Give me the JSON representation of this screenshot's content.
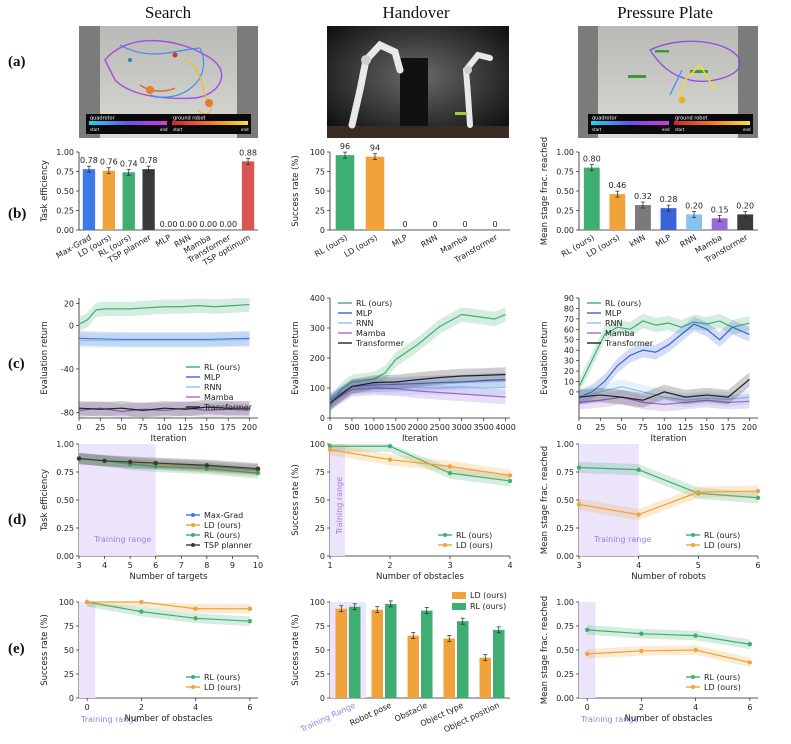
{
  "columns": [
    "Search",
    "Handover",
    "Pressure Plate"
  ],
  "rows": [
    "(a)",
    "(b)",
    "(c)",
    "(d)",
    "(e)"
  ],
  "photos": {
    "search": {
      "legend1": "quadrotor",
      "legend2": "ground robot",
      "start": "start",
      "end": "end"
    },
    "pressure": {
      "legend1": "quadrotor",
      "legend2": "ground robot",
      "start": "start",
      "end": "end"
    }
  },
  "colors": {
    "rl": "#3fae73",
    "ld": "#f0a33a",
    "mlp": "#3a63d8",
    "rnn": "#88c3ee",
    "mamba": "#9b68d8",
    "transformer": "#222222",
    "maxgrad": "#3a7be8",
    "tsp": "#3a3a3a",
    "tspopt": "#d95555",
    "knn": "#7a7a7a",
    "train": "#ebe4fb"
  },
  "chart_data": [
    {
      "id": "b1",
      "type": "bar",
      "ylabel": "Task efficiency",
      "ylim": [
        0,
        1
      ],
      "yticks": [
        "0.00",
        "0.25",
        "0.50",
        "0.75",
        "1.00"
      ],
      "categories": [
        "Max-Grad",
        "LD (ours)",
        "RL (ours)",
        "TSP planner",
        "MLP",
        "RNN",
        "Mamba",
        "Transformer",
        "TSP optimum"
      ],
      "values": [
        0.78,
        0.76,
        0.74,
        0.78,
        0,
        0,
        0,
        0,
        0.88
      ],
      "labels": [
        "0.78",
        "0.76",
        "0.74",
        "0.78",
        "0.00",
        "0.00",
        "0.00",
        "0.00",
        "0.88"
      ],
      "colors": [
        "#3a7be8",
        "#f0a33a",
        "#3fae73",
        "#3a3a3a",
        "#3a63d8",
        "#88c3ee",
        "#9b68d8",
        "#222222",
        "#d95555"
      ]
    },
    {
      "id": "b2",
      "type": "bar",
      "ylabel": "Success rate (%)",
      "ylim": [
        0,
        100
      ],
      "yticks": [
        "0",
        "25",
        "50",
        "75",
        "100"
      ],
      "categories": [
        "RL (ours)",
        "LD (ours)",
        "MLP",
        "RNN",
        "Mamba",
        "Transformer"
      ],
      "values": [
        96,
        94,
        0,
        0,
        0,
        0
      ],
      "labels": [
        "96",
        "94",
        "0",
        "0",
        "0",
        "0"
      ],
      "colors": [
        "#3fae73",
        "#f0a33a",
        "#3a63d8",
        "#88c3ee",
        "#9b68d8",
        "#222222"
      ]
    },
    {
      "id": "b3",
      "type": "bar",
      "ylabel": "Mean stage frac. reached",
      "ylim": [
        0,
        1
      ],
      "yticks": [
        "0.00",
        "0.25",
        "0.50",
        "0.75",
        "1.00"
      ],
      "categories": [
        "RL (ours)",
        "LD (ours)",
        "kNN",
        "MLP",
        "RNN",
        "Mamba",
        "Transformer"
      ],
      "values": [
        0.8,
        0.46,
        0.32,
        0.28,
        0.2,
        0.15,
        0.2
      ],
      "labels": [
        "0.80",
        "0.46",
        "0.32",
        "0.28",
        "0.20",
        "0.15",
        "0.20"
      ],
      "colors": [
        "#3fae73",
        "#f0a33a",
        "#7a7a7a",
        "#3a63d8",
        "#88c3ee",
        "#9b68d8",
        "#3a3a3a"
      ]
    },
    {
      "id": "c1",
      "type": "line",
      "xlabel": "Iteration",
      "ylabel": "Evaluation return",
      "xlim": [
        0,
        210
      ],
      "ylim": [
        -85,
        25
      ],
      "xticks": [
        0,
        25,
        50,
        75,
        100,
        125,
        150,
        175,
        200
      ],
      "yticks": [
        -80,
        -40,
        0,
        20
      ],
      "legend": [
        "RL (ours)",
        "MLP",
        "RNN",
        "Mamba",
        "Transformer"
      ],
      "series": [
        {
          "name": "RL (ours)",
          "color": "#3fae73",
          "x": [
            0,
            10,
            20,
            30,
            40,
            60,
            80,
            100,
            120,
            140,
            160,
            180,
            200
          ],
          "y": [
            1,
            5,
            14,
            15,
            15,
            15,
            16,
            17,
            17,
            18,
            17,
            18,
            19
          ]
        },
        {
          "name": "MLP",
          "color": "#3a63d8",
          "x": [
            0,
            50,
            100,
            150,
            200
          ],
          "y": [
            -12,
            -13,
            -13,
            -13,
            -12
          ]
        },
        {
          "name": "RNN",
          "color": "#88c3ee",
          "x": [
            0,
            50,
            100,
            150,
            200
          ],
          "y": [
            -14,
            -14,
            -14,
            -14,
            -13
          ]
        },
        {
          "name": "Mamba",
          "color": "#9b68d8",
          "x": [
            0,
            25,
            50,
            75,
            100,
            125,
            150,
            175,
            200
          ],
          "y": [
            -78,
            -76,
            -79,
            -77,
            -78,
            -76,
            -78,
            -77,
            -78
          ]
        },
        {
          "name": "Transformer",
          "color": "#222222",
          "x": [
            0,
            25,
            50,
            75,
            100,
            125,
            150,
            175,
            200
          ],
          "y": [
            -76,
            -77,
            -76,
            -78,
            -76,
            -77,
            -75,
            -76,
            -76
          ]
        }
      ]
    },
    {
      "id": "c2",
      "type": "line",
      "xlabel": "Iteration",
      "ylabel": "Evaluation return",
      "xlim": [
        0,
        4100
      ],
      "ylim": [
        0,
        400
      ],
      "xticks": [
        0,
        500,
        1000,
        1500,
        2000,
        2500,
        3000,
        3500,
        4000
      ],
      "yticks": [
        0,
        100,
        200,
        300,
        400
      ],
      "legend": [
        "RL (ours)",
        "MLP",
        "RNN",
        "Mamba",
        "Transformer"
      ],
      "series": [
        {
          "name": "RL (ours)",
          "color": "#3fae73",
          "x": [
            0,
            250,
            500,
            750,
            1000,
            1250,
            1500,
            1750,
            2000,
            2250,
            2500,
            2750,
            3000,
            3250,
            3500,
            3750,
            4000
          ],
          "y": [
            40,
            95,
            120,
            125,
            130,
            150,
            195,
            220,
            245,
            275,
            305,
            325,
            345,
            340,
            335,
            330,
            345
          ]
        },
        {
          "name": "MLP",
          "color": "#3a63d8",
          "x": [
            0,
            500,
            1000,
            1500,
            2000,
            2500,
            3000,
            3500,
            4000
          ],
          "y": [
            60,
            105,
            110,
            112,
            115,
            118,
            120,
            125,
            128
          ]
        },
        {
          "name": "RNN",
          "color": "#88c3ee",
          "x": [
            0,
            500,
            1000,
            1500,
            2000,
            2500,
            3000,
            3500,
            4000
          ],
          "y": [
            55,
            100,
            105,
            98,
            102,
            100,
            105,
            100,
            102
          ]
        },
        {
          "name": "Mamba",
          "color": "#9b68d8",
          "x": [
            0,
            500,
            1000,
            1500,
            2000,
            2500,
            3000,
            3500,
            4000
          ],
          "y": [
            50,
            95,
            100,
            98,
            90,
            85,
            80,
            75,
            70
          ]
        },
        {
          "name": "Transformer",
          "color": "#222222",
          "x": [
            0,
            500,
            1000,
            1500,
            2000,
            2500,
            3000,
            3500,
            4000
          ],
          "y": [
            50,
            105,
            118,
            120,
            128,
            135,
            140,
            142,
            145
          ]
        }
      ]
    },
    {
      "id": "c3",
      "type": "line",
      "xlabel": "Iteration",
      "ylabel": "Evaluation return",
      "xlim": [
        0,
        210
      ],
      "ylim": [
        -25,
        90
      ],
      "xticks": [
        0,
        25,
        50,
        75,
        100,
        125,
        150,
        175,
        200
      ],
      "yticks": [
        0,
        10,
        20,
        30,
        40,
        50,
        60,
        70,
        80,
        90
      ],
      "legend": [
        "RL (ours)",
        "MLP",
        "RNN",
        "Mamba",
        "Transformer"
      ],
      "series": [
        {
          "name": "RL (ours)",
          "color": "#3fae73",
          "x": [
            0,
            15,
            30,
            45,
            60,
            75,
            90,
            105,
            120,
            135,
            150,
            165,
            180,
            200
          ],
          "y": [
            5,
            30,
            55,
            62,
            60,
            68,
            64,
            66,
            62,
            67,
            65,
            68,
            62,
            66
          ]
        },
        {
          "name": "MLP",
          "color": "#3a63d8",
          "x": [
            0,
            15,
            30,
            45,
            60,
            75,
            90,
            105,
            120,
            135,
            150,
            165,
            180,
            200
          ],
          "y": [
            -5,
            0,
            10,
            25,
            35,
            40,
            38,
            45,
            55,
            65,
            60,
            50,
            62,
            55
          ]
        },
        {
          "name": "RNN",
          "color": "#88c3ee",
          "x": [
            0,
            25,
            50,
            75,
            100,
            125,
            150,
            175,
            200
          ],
          "y": [
            -5,
            0,
            5,
            0,
            -5,
            -8,
            -6,
            -7,
            -5
          ]
        },
        {
          "name": "Mamba",
          "color": "#9b68d8",
          "x": [
            0,
            25,
            50,
            75,
            100,
            125,
            150,
            175,
            200
          ],
          "y": [
            -10,
            -8,
            -5,
            -10,
            -12,
            -10,
            -8,
            -10,
            -9
          ]
        },
        {
          "name": "Transformer",
          "color": "#222222",
          "x": [
            0,
            25,
            50,
            75,
            100,
            125,
            150,
            175,
            200
          ],
          "y": [
            -5,
            -3,
            -5,
            -8,
            0,
            -5,
            -3,
            -5,
            12
          ]
        }
      ]
    },
    {
      "id": "d1",
      "type": "line",
      "xlabel": "Number of targets",
      "ylabel": "Task efficiency",
      "xlim": [
        3,
        10
      ],
      "ylim": [
        0,
        1
      ],
      "xticks": [
        3,
        4,
        5,
        6,
        7,
        8,
        9,
        10
      ],
      "yticks": [
        "0.00",
        "0.25",
        "0.50",
        "0.75",
        "1.00"
      ],
      "training_range": [
        3,
        6
      ],
      "training_label": "Training range",
      "legend": [
        "Max-Grad",
        "LD (ours)",
        "RL (ours)",
        "TSP planner"
      ],
      "series": [
        {
          "name": "Max-Grad",
          "color": "#3a7be8",
          "x": [
            3,
            4,
            5,
            6,
            8,
            10
          ],
          "y": [
            0.87,
            0.85,
            0.83,
            0.82,
            0.8,
            0.77
          ]
        },
        {
          "name": "LD (ours)",
          "color": "#f0a33a",
          "x": [
            3,
            4,
            5,
            6,
            8,
            10
          ],
          "y": [
            0.87,
            0.85,
            0.83,
            0.82,
            0.79,
            0.76
          ]
        },
        {
          "name": "RL (ours)",
          "color": "#3fae73",
          "x": [
            3,
            4,
            5,
            6,
            8,
            10
          ],
          "y": [
            0.87,
            0.85,
            0.82,
            0.8,
            0.78,
            0.74
          ]
        },
        {
          "name": "TSP planner",
          "color": "#3a3a3a",
          "x": [
            3,
            4,
            5,
            6,
            8,
            10
          ],
          "y": [
            0.87,
            0.85,
            0.84,
            0.83,
            0.81,
            0.78
          ]
        }
      ]
    },
    {
      "id": "d2",
      "type": "line",
      "xlabel": "Number of obstacles",
      "ylabel": "Success rate (%)",
      "xlim": [
        1,
        4
      ],
      "ylim": [
        0,
        100
      ],
      "xticks": [
        1,
        2,
        3,
        4
      ],
      "yticks": [
        0,
        25,
        50,
        75,
        100
      ],
      "training_range": [
        1,
        1.25
      ],
      "training_label": "Training range",
      "legend": [
        "RL (ours)",
        "LD (ours)"
      ],
      "series": [
        {
          "name": "RL (ours)",
          "color": "#3fae73",
          "x": [
            1,
            2,
            3,
            4
          ],
          "y": [
            98,
            98,
            74,
            67
          ]
        },
        {
          "name": "LD (ours)",
          "color": "#f0a33a",
          "x": [
            1,
            2,
            3,
            4
          ],
          "y": [
            95,
            86,
            80,
            72
          ]
        }
      ]
    },
    {
      "id": "d3",
      "type": "line",
      "xlabel": "Number of robots",
      "ylabel": "Mean stage frac. reached",
      "xlim": [
        3,
        6
      ],
      "ylim": [
        0,
        1
      ],
      "xticks": [
        3,
        4,
        5,
        6
      ],
      "yticks": [
        "0.00",
        "0.25",
        "0.50",
        "0.75",
        "1.00"
      ],
      "training_range": [
        3,
        4
      ],
      "training_label": "Training range",
      "legend": [
        "RL (ours)",
        "LD (ours)"
      ],
      "series": [
        {
          "name": "RL (ours)",
          "color": "#3fae73",
          "x": [
            3,
            4,
            5,
            6
          ],
          "y": [
            0.79,
            0.77,
            0.56,
            0.52
          ]
        },
        {
          "name": "LD (ours)",
          "color": "#f0a33a",
          "x": [
            3,
            4,
            5,
            6
          ],
          "y": [
            0.46,
            0.37,
            0.57,
            0.58
          ]
        }
      ]
    },
    {
      "id": "e1",
      "type": "line",
      "xlabel": "Number of obstacles",
      "ylabel": "Success rate (%)",
      "xlim": [
        -0.3,
        6.3
      ],
      "ylim": [
        0,
        100
      ],
      "xticks": [
        0,
        2,
        4,
        6
      ],
      "yticks": [
        0,
        25,
        50,
        75,
        100
      ],
      "training_range": [
        -0.3,
        0.3
      ],
      "training_label": "Training range",
      "legend": [
        "RL (ours)",
        "LD (ours)"
      ],
      "series": [
        {
          "name": "RL (ours)",
          "color": "#3fae73",
          "x": [
            0,
            2,
            4,
            6
          ],
          "y": [
            100,
            90,
            83,
            80
          ]
        },
        {
          "name": "LD (ours)",
          "color": "#f0a33a",
          "x": [
            0,
            2,
            4,
            6
          ],
          "y": [
            100,
            100,
            93,
            93
          ]
        }
      ]
    },
    {
      "id": "e2",
      "type": "bar",
      "ylabel": "Success rate (%)",
      "ylim": [
        0,
        100
      ],
      "yticks": [
        "0",
        "25",
        "50",
        "75",
        "100"
      ],
      "categories": [
        "Training Range",
        "Robot pose",
        "Obstacle",
        "Object type",
        "Object position"
      ],
      "series": [
        {
          "name": "LD (ours)",
          "color": "#f0a33a",
          "values": [
            93,
            92,
            65,
            62,
            42
          ]
        },
        {
          "name": "RL (ours)",
          "color": "#3fae73",
          "values": [
            95,
            98,
            91,
            80,
            71
          ]
        }
      ],
      "legend": [
        "LD (ours)",
        "RL (ours)"
      ]
    },
    {
      "id": "e3",
      "type": "line",
      "xlabel": "Number of obstacles",
      "ylabel": "Mean stage frac. reached",
      "xlim": [
        -0.3,
        6.3
      ],
      "ylim": [
        0,
        1
      ],
      "xticks": [
        0,
        2,
        4,
        6
      ],
      "yticks": [
        "0.00",
        "0.25",
        "0.50",
        "0.75",
        "1.00"
      ],
      "training_range": [
        -0.3,
        0.3
      ],
      "training_label": "Training range",
      "legend": [
        "RL (ours)",
        "LD (ours)"
      ],
      "series": [
        {
          "name": "RL (ours)",
          "color": "#3fae73",
          "x": [
            0,
            2,
            4,
            6
          ],
          "y": [
            0.71,
            0.67,
            0.65,
            0.56
          ]
        },
        {
          "name": "LD (ours)",
          "color": "#f0a33a",
          "x": [
            0,
            2,
            4,
            6
          ],
          "y": [
            0.46,
            0.49,
            0.5,
            0.37
          ]
        }
      ]
    }
  ]
}
